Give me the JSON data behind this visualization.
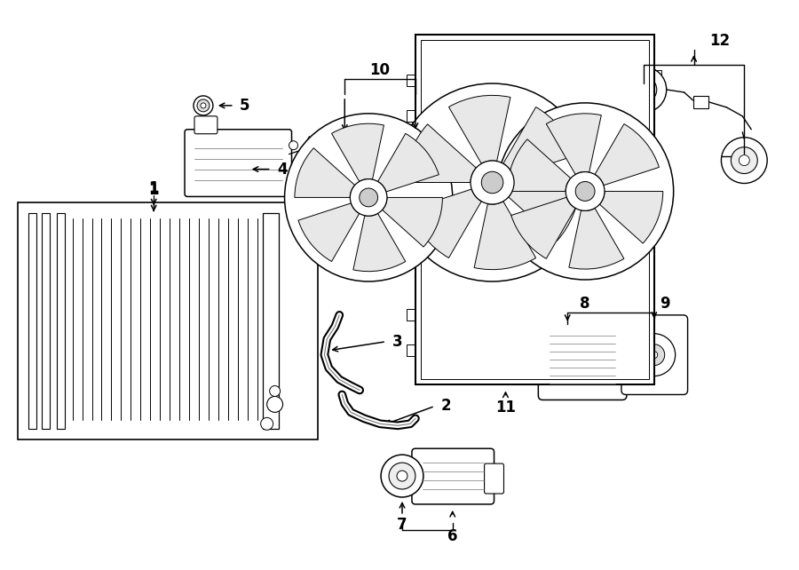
{
  "background": "#ffffff",
  "line_color": "#000000",
  "gray_color": "#777777",
  "light_gray": "#aaaaaa"
}
